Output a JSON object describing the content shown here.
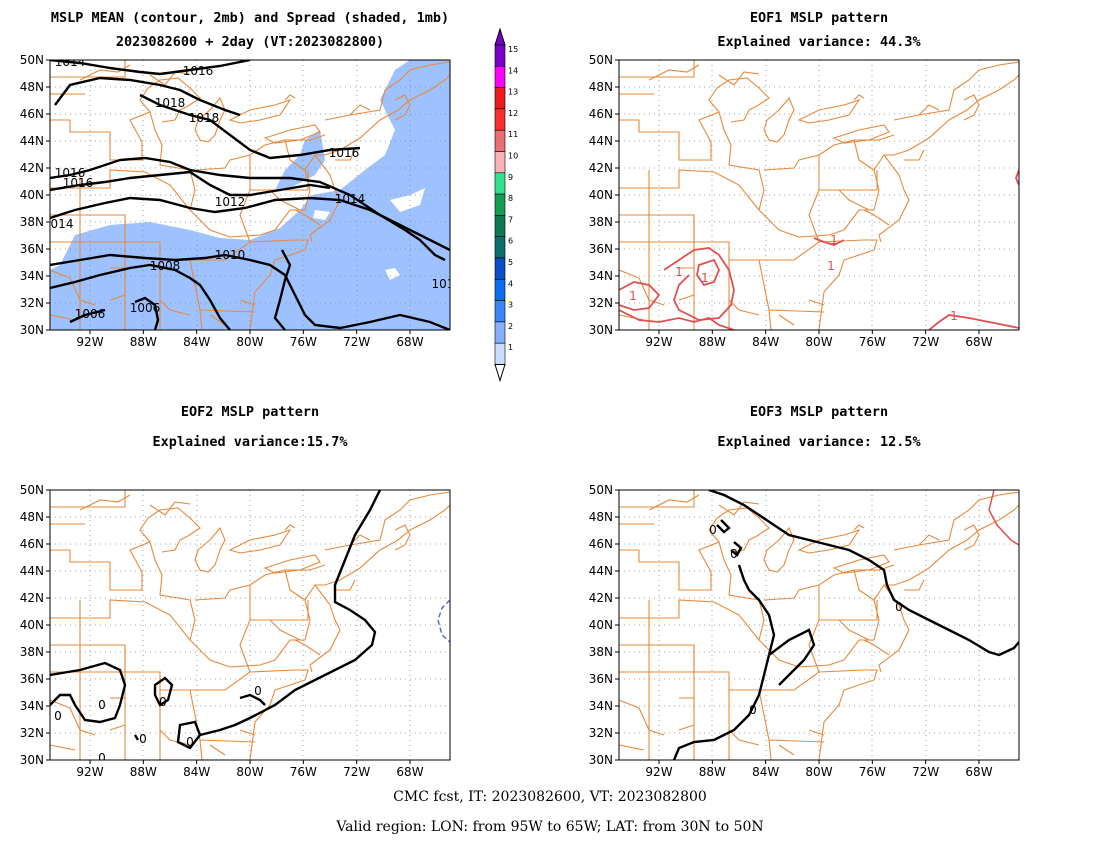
{
  "panels": {
    "p1": {
      "title1": "MSLP MEAN (contour, 2mb) and Spread (shaded, 1mb)",
      "title2": "2023082600 + 2day (VT:2023082800)"
    },
    "p2": {
      "title1": "EOF1 MSLP pattern",
      "title2": "Explained variance: 44.3%"
    },
    "p3": {
      "title1": "EOF2 MSLP pattern",
      "title2": "Explained variance:15.7%"
    },
    "p4": {
      "title1": "EOF3 MSLP pattern",
      "title2": "Explained variance: 12.5%"
    }
  },
  "axes": {
    "lat_labels": [
      "50N",
      "48N",
      "46N",
      "44N",
      "42N",
      "40N",
      "38N",
      "36N",
      "34N",
      "32N",
      "30N"
    ],
    "lon_labels": [
      "92W",
      "88W",
      "84W",
      "80W",
      "76W",
      "72W",
      "68W"
    ]
  },
  "contour_labels": {
    "p1": [
      "1014",
      "1016",
      "1018",
      "1018",
      "1016",
      "1016",
      "1016",
      "1014",
      "1012",
      "014",
      "1010",
      "1008",
      "1006",
      "1006",
      "101"
    ],
    "p2": [
      "1",
      "1",
      "1",
      "1",
      "1",
      "1"
    ],
    "p3": [
      "0",
      "0",
      "0",
      "0",
      "0",
      "0",
      "0",
      "0"
    ],
    "p4": [
      "0",
      "0",
      "0",
      "0"
    ]
  },
  "colorbar": {
    "labels": [
      "15",
      "14",
      "13",
      "12",
      "11",
      "10",
      "9",
      "8",
      "7",
      "6",
      "5",
      "4",
      "3",
      "2",
      "1"
    ],
    "colors": [
      "#7a00c8",
      "#ff00ff",
      "#ee1a1a",
      "#ff2e2e",
      "#e87070",
      "#f5b3b3",
      "#33e08c",
      "#12a050",
      "#0a7a50",
      "#0a6e6e",
      "#0a4ec8",
      "#0a6ef0",
      "#3a86ff",
      "#86b0ff",
      "#c7dcff"
    ]
  },
  "colors": {
    "state_lines": "#e8893a",
    "contour": "#000000",
    "spread_shade": "#9ec2ff",
    "eof_positive": "#e05050",
    "eof_negative": "#4466cc",
    "grid": "#888888"
  },
  "footer": {
    "line1": "CMC fcst, IT: 2023082600, VT: 2023082800",
    "line2": "Valid region: LON: from 95W to 65W; LAT: from 30N to 50N"
  }
}
